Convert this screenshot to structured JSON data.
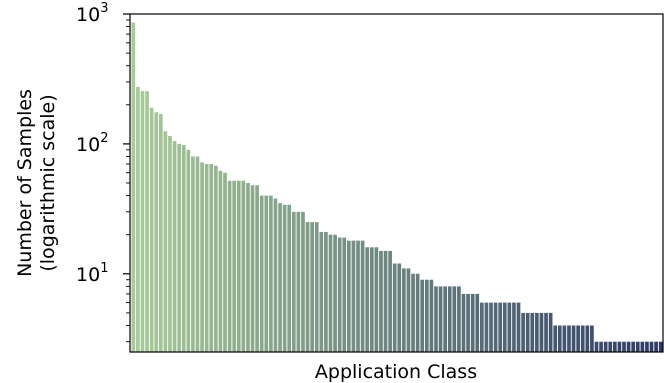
{
  "chart_data": {
    "type": "bar",
    "xlabel": "Application Class",
    "ylabel": [
      "Number of Samples",
      "(logarithmic scale)"
    ],
    "yscale": "log",
    "ylim": [
      2.5,
      1000
    ],
    "yticks": [
      {
        "value": 10,
        "base": "10",
        "exp": "1"
      },
      {
        "value": 100,
        "base": "10",
        "exp": "2"
      },
      {
        "value": 1000,
        "base": "10",
        "exp": "3"
      }
    ],
    "color_start": "#a8cc98",
    "color_end": "#2e3a66",
    "values": [
      860,
      275,
      255,
      255,
      190,
      175,
      170,
      125,
      115,
      105,
      100,
      98,
      90,
      80,
      80,
      72,
      70,
      70,
      68,
      62,
      60,
      52,
      52,
      52,
      52,
      50,
      48,
      48,
      40,
      40,
      40,
      38,
      35,
      34,
      34,
      30,
      30,
      30,
      25,
      25,
      25,
      21,
      21,
      20,
      20,
      19,
      19,
      18,
      18,
      18,
      18,
      16,
      16,
      16,
      15,
      15,
      15,
      12,
      12,
      11,
      11,
      10,
      10,
      9,
      9,
      9,
      8,
      8,
      8,
      8,
      8,
      8,
      7,
      7,
      7,
      7,
      6,
      6,
      6,
      6,
      6,
      6,
      6,
      6,
      6,
      5,
      5,
      5,
      5,
      5,
      5,
      5,
      4,
      4,
      4,
      4,
      4,
      4,
      4,
      4,
      4,
      3,
      3,
      3,
      3,
      3,
      3,
      3,
      3,
      3,
      3,
      3,
      3,
      3,
      3,
      3
    ]
  }
}
